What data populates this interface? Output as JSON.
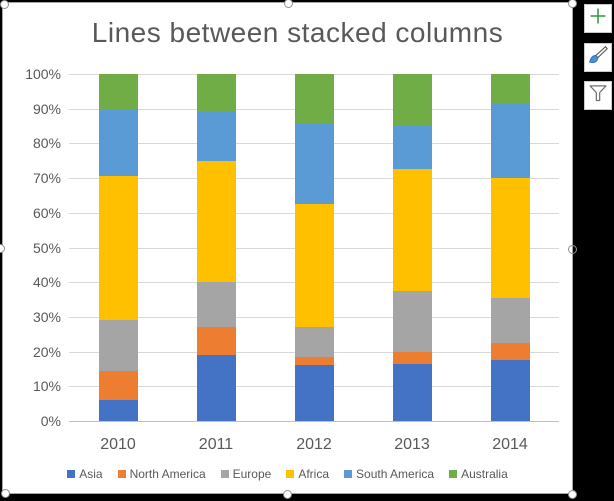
{
  "colors": {
    "text": "#595959",
    "gridline": "#D9D9D9",
    "axis_line": "#BFBFBF",
    "chart_background": "#FFFFFF",
    "canvas_background": "#000000",
    "selection_handle_ring": "#8F8F8F",
    "plus_icon_green": "#35A145",
    "brush_tip_blue": "#4A8FD3"
  },
  "chart_data": {
    "type": "bar",
    "stacked": true,
    "percent_stacked": true,
    "title": "Lines between stacked columns",
    "xlabel": "",
    "ylabel": "",
    "categories": [
      "2010",
      "2011",
      "2012",
      "2013",
      "2014"
    ],
    "series": [
      {
        "name": "Asia",
        "color": "#4472C4",
        "values": [
          6,
          19,
          16,
          16.5,
          17.5
        ]
      },
      {
        "name": "North America",
        "color": "#ED7D31",
        "values": [
          8.5,
          8,
          2.5,
          3.5,
          5
        ]
      },
      {
        "name": "Europe",
        "color": "#A5A5A5",
        "values": [
          14.5,
          13,
          8.5,
          17.5,
          13
        ]
      },
      {
        "name": "Africa",
        "color": "#FFC000",
        "values": [
          41.5,
          35,
          35.5,
          35,
          34.5
        ]
      },
      {
        "name": "South America",
        "color": "#5B9BD5",
        "values": [
          19,
          14,
          23,
          12.5,
          21.5
        ]
      },
      {
        "name": "Australia",
        "color": "#70AD47",
        "values": [
          10.5,
          11,
          14.5,
          15,
          8.5
        ]
      }
    ],
    "ylim": [
      0,
      100
    ],
    "y_ticks": [
      "0%",
      "10%",
      "20%",
      "30%",
      "40%",
      "50%",
      "60%",
      "70%",
      "80%",
      "90%",
      "100%"
    ],
    "grid": true,
    "legend_position": "bottom"
  },
  "toolbar": {
    "buttons": [
      {
        "name": "chart-elements",
        "icon": "plus-icon"
      },
      {
        "name": "chart-styles",
        "icon": "paintbrush-icon"
      },
      {
        "name": "chart-filters",
        "icon": "funnel-icon"
      }
    ]
  }
}
